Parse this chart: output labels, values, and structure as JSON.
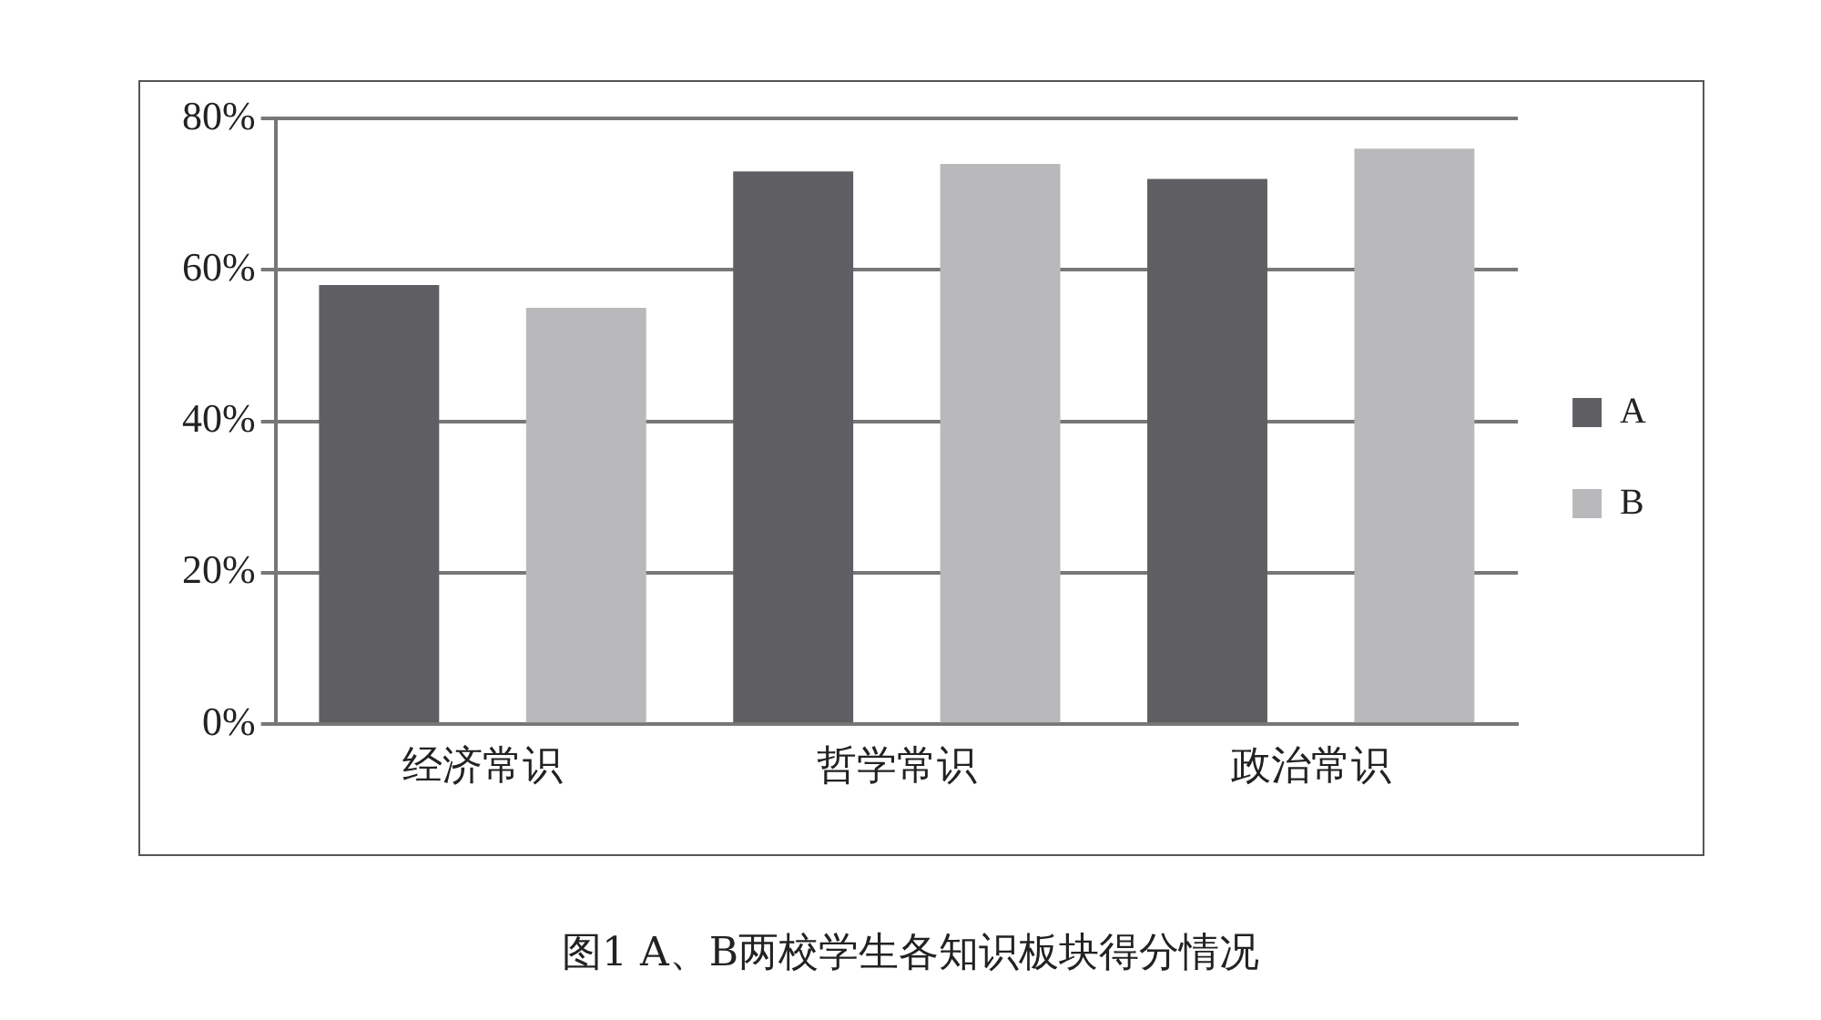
{
  "chart_data": {
    "type": "bar",
    "title": "图1 A、B两校学生各知识板块得分情况",
    "categories": [
      "经济常识",
      "哲学常识",
      "政治常识"
    ],
    "series": [
      {
        "name": "A",
        "color": "#5f5f63",
        "values": [
          58,
          73,
          72
        ]
      },
      {
        "name": "B",
        "color": "#b9b9bb",
        "values": [
          55,
          74,
          76
        ]
      }
    ],
    "ylim": [
      0,
      80
    ],
    "yticks": [
      {
        "value": 0,
        "label": "0%"
      },
      {
        "value": 20,
        "label": "20%"
      },
      {
        "value": 40,
        "label": "40%"
      },
      {
        "value": 60,
        "label": "60%"
      },
      {
        "value": 80,
        "label": "80%"
      }
    ],
    "grid": "y",
    "legend": "right"
  }
}
